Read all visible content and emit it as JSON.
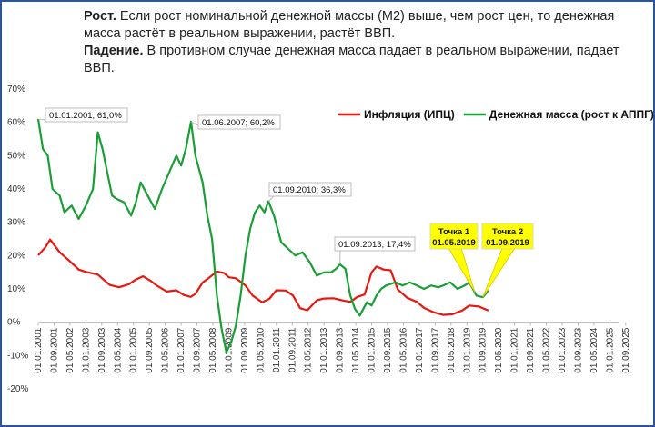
{
  "header": {
    "line1_bold": "Рост.",
    "line1_text": " Если рост номинальной  денежной массы (М2) выше, чем рост цен,  то денежная  масса растёт в реальном выражении, растёт ВВП.",
    "line2_bold": "Падение.",
    "line2_text": " В противном случае денежная масса падает в реальном выражении, падает ВВП."
  },
  "chart_data": {
    "type": "line",
    "xlim": [
      2001,
      2025.75
    ],
    "ylim": [
      -20,
      70
    ],
    "y_ticks": [
      -20,
      -10,
      0,
      10,
      20,
      30,
      40,
      50,
      60,
      70
    ],
    "y_tick_labels": [
      "-20%",
      "-10%",
      "0%",
      "10%",
      "20%",
      "30%",
      "40%",
      "50%",
      "60%",
      "70%"
    ],
    "x_tick_labels": [
      "01.01.2001",
      "01.09.2001",
      "01.05.2002",
      "01.01.2003",
      "01.09.2003",
      "01.05.2004",
      "01.01.2005",
      "01.09.2005",
      "01.05.2006",
      "01.01.2007",
      "01.09.2007",
      "01.05.2008",
      "01.01.2009",
      "01.09.2009",
      "01.05.2010",
      "01.01.2011",
      "01.09.2011",
      "01.05.2012",
      "01.01.2013",
      "01.09.2013",
      "01.05.2014",
      "01.01.2015",
      "01.09.2015",
      "01.05.2016",
      "01.01.2017",
      "01.09.2017",
      "01.05.2018",
      "01.01.2019",
      "01.09.2019",
      "01.05.2020",
      "01.01.2021",
      "01.09.2021",
      "01.05.2022",
      "01.01.2023",
      "01.09.2023",
      "01.05.2024",
      "01.01.2025",
      "01.09.2025"
    ],
    "legend_position": "top-right",
    "series": [
      {
        "name": "Инфляция (ИПЦ)",
        "color": "#e8170f",
        "x": [
          2001.0,
          2001.3,
          2001.5,
          2001.9,
          2002.3,
          2002.7,
          2003.0,
          2003.5,
          2004.0,
          2004.4,
          2004.8,
          2005.1,
          2005.4,
          2005.7,
          2006.0,
          2006.4,
          2006.8,
          2007.1,
          2007.4,
          2007.6,
          2007.9,
          2008.2,
          2008.5,
          2008.8,
          2009.0,
          2009.3,
          2009.7,
          2010.0,
          2010.4,
          2010.7,
          2011.0,
          2011.4,
          2011.7,
          2012.0,
          2012.3,
          2012.7,
          2013.0,
          2013.4,
          2013.8,
          2014.1,
          2014.4,
          2014.7,
          2015.0,
          2015.2,
          2015.5,
          2015.8,
          2016.1,
          2016.5,
          2016.9,
          2017.2,
          2017.6,
          2018.0,
          2018.4,
          2018.8,
          2019.1,
          2019.5,
          2019.9
        ],
        "values": [
          20.1,
          22.5,
          24.8,
          21.0,
          18.5,
          15.8,
          15.1,
          14.3,
          11.2,
          10.5,
          11.4,
          12.8,
          13.8,
          12.5,
          10.9,
          9.2,
          9.6,
          8.2,
          7.6,
          8.5,
          11.9,
          13.5,
          15.2,
          14.8,
          13.5,
          13.2,
          11.0,
          8.0,
          6.0,
          7.0,
          9.6,
          9.5,
          8.0,
          4.2,
          3.6,
          6.6,
          7.1,
          7.2,
          6.5,
          6.1,
          7.6,
          8.3,
          15.0,
          16.7,
          15.8,
          15.6,
          9.8,
          7.3,
          6.1,
          4.3,
          3.0,
          2.2,
          2.4,
          3.5,
          5.0,
          4.7,
          3.5
        ]
      },
      {
        "name": "Денежная масса (рост к АППГ)",
        "color": "#1a9e36",
        "x": [
          2001.0,
          2001.2,
          2001.4,
          2001.6,
          2001.9,
          2002.1,
          2002.4,
          2002.7,
          2003.0,
          2003.3,
          2003.5,
          2003.7,
          2003.9,
          2004.1,
          2004.3,
          2004.6,
          2004.9,
          2005.1,
          2005.3,
          2005.6,
          2005.9,
          2006.2,
          2006.5,
          2006.8,
          2007.0,
          2007.2,
          2007.417,
          2007.6,
          2007.9,
          2008.1,
          2008.3,
          2008.5,
          2008.7,
          2008.9,
          2009.1,
          2009.3,
          2009.5,
          2009.7,
          2009.9,
          2010.1,
          2010.3,
          2010.5,
          2010.667,
          2010.9,
          2011.2,
          2011.5,
          2011.8,
          2012.1,
          2012.4,
          2012.7,
          2013.0,
          2013.3,
          2013.5,
          2013.667,
          2013.9,
          2014.1,
          2014.3,
          2014.5,
          2014.8,
          2015.0,
          2015.2,
          2015.4,
          2015.6,
          2015.8,
          2016.0,
          2016.3,
          2016.6,
          2016.9,
          2017.2,
          2017.5,
          2017.8,
          2018.0,
          2018.3,
          2018.6,
          2018.9,
          2019.1,
          2019.4,
          2019.667,
          2019.9
        ],
        "values": [
          61.0,
          52.0,
          50.0,
          40.0,
          38.0,
          33.0,
          35.0,
          31.0,
          35.0,
          40.0,
          57.0,
          52.0,
          45.0,
          38.0,
          37.0,
          36.0,
          32.0,
          36.0,
          42.0,
          38.0,
          34.0,
          40.0,
          45.0,
          50.0,
          47.0,
          52.0,
          60.2,
          50.0,
          42.0,
          32.0,
          25.0,
          8.0,
          -2.0,
          -9.0,
          -6.0,
          -1.0,
          8.0,
          20.0,
          28.0,
          33.0,
          35.0,
          33.0,
          36.3,
          32.0,
          24.0,
          22.0,
          20.0,
          21.0,
          18.0,
          14.0,
          15.0,
          15.0,
          16.0,
          17.4,
          16.0,
          8.0,
          4.0,
          2.0,
          6.0,
          5.0,
          8.0,
          10.0,
          11.0,
          11.5,
          12.0,
          11.0,
          12.0,
          11.0,
          10.0,
          11.0,
          10.5,
          11.0,
          12.0,
          10.0,
          11.0,
          12.0,
          8.0,
          7.5,
          9.5
        ]
      }
    ],
    "annotations": [
      {
        "x": 2001.0,
        "y": 61.0,
        "label": "01.01.2001;  61,0%"
      },
      {
        "x": 2007.417,
        "y": 60.2,
        "label": "01.06.2007;  60,2%"
      },
      {
        "x": 2010.667,
        "y": 36.3,
        "label": "01.09.2010;  36,3%"
      },
      {
        "x": 2013.667,
        "y": 17.4,
        "label": "01.09.2013;  17,4%"
      }
    ],
    "points": [
      {
        "x": 2019.333,
        "y": 9.0,
        "label_line1": "Точка 1",
        "label_line2": "01.05.2019"
      },
      {
        "x": 2019.667,
        "y": 7.5,
        "label_line1": "Точка 2",
        "label_line2": "01.09.2019"
      }
    ]
  }
}
